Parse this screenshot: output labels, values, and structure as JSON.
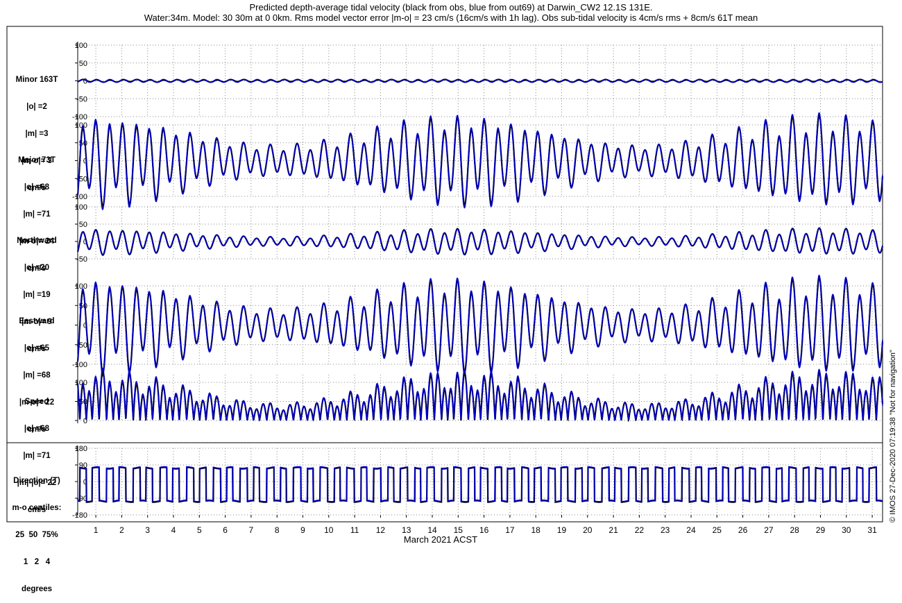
{
  "title_line1": "Predicted depth-average tidal velocity (black from obs, blue from out69) at Darwin_CW2 12.1S 131E.",
  "title_line2": "Water:34m. Model: 30 30m at 0 0km. Rms model vector error |m-o| = 23 cm/s (16cm/s with 1h lag). Obs sub-tidal velocity is 4cm/s rms + 8cm/s 61T mean",
  "side_note": "© IMOS 27-Dec-2020 07:19:38  \"Not for navigation\"",
  "colors": {
    "obs": "#000000",
    "model": "#0000cc",
    "grid": "#888888",
    "frame": "#000000"
  },
  "chart_data": {
    "type": "line",
    "xlabel": "March 2021 ACST",
    "x_ticks": [
      1,
      2,
      3,
      4,
      5,
      6,
      7,
      8,
      9,
      10,
      11,
      12,
      13,
      14,
      15,
      16,
      17,
      18,
      19,
      20,
      21,
      22,
      23,
      24,
      25,
      26,
      27,
      28,
      29,
      30,
      31
    ],
    "xlim": [
      0.3,
      31.4
    ],
    "series_names": [
      "obs (black)",
      "out69 model (blue)"
    ],
    "grid": true,
    "panels": [
      {
        "id": "minor",
        "label_lines": [
          "Minor 163T",
          "|o| =2",
          "|m| =3",
          "|m-o|= 3",
          "cm/s"
        ],
        "ylim": [
          -100,
          100
        ],
        "y_ticks": [
          100,
          50,
          0,
          -50,
          -100
        ],
        "y_tick_labels": [
          "100",
          "50",
          "0",
          "-50",
          "-100"
        ],
        "signal": {
          "kind": "oscillation",
          "amplitude_obs": 3,
          "amplitude_model": 4,
          "spring_neap": false
        }
      },
      {
        "id": "major",
        "label_lines": [
          "Major 73T",
          "|o| =68",
          "|m| =71",
          "|m-o|= 24",
          "cm/s"
        ],
        "ylim": [
          -100,
          100
        ],
        "y_ticks": [
          100,
          50,
          0,
          -50,
          -100
        ],
        "y_tick_labels": [
          "100",
          "50",
          "0",
          "-50",
          "-100"
        ],
        "signal": {
          "kind": "oscillation",
          "spring_max_obs": 112,
          "spring_max_model": 118,
          "neap_min": 40
        }
      },
      {
        "id": "north",
        "label_lines": [
          "Northward",
          "|o| =20",
          "|m| =19",
          "|m-o|= 9",
          "cm/s"
        ],
        "ylim": [
          -50,
          100
        ],
        "y_ticks": [
          100,
          50,
          0,
          -50
        ],
        "y_tick_labels": [
          "100",
          "50",
          "0",
          "-50"
        ],
        "signal": {
          "kind": "oscillation",
          "spring_max_obs": 34,
          "spring_max_model": 33,
          "neap_min": 12
        }
      },
      {
        "id": "east",
        "label_lines": [
          "Eastward",
          "|o| =65",
          "|m| =68",
          "|m-o|= 22",
          "cm/s"
        ],
        "ylim": [
          -100,
          100
        ],
        "y_ticks": [
          100,
          50,
          0,
          -50,
          -100
        ],
        "y_tick_labels": [
          "100",
          "50",
          "0",
          "-50",
          "-100"
        ],
        "signal": {
          "kind": "oscillation",
          "spring_max_obs": 107,
          "spring_max_model": 112,
          "neap_min": 38
        }
      },
      {
        "id": "speed",
        "label_lines": [
          "Speed",
          "|o| =68",
          "|m| =71",
          "|m|-|o|= 22",
          "cm/s"
        ],
        "ylim": [
          0,
          120
        ],
        "y_ticks": [
          100,
          50,
          0
        ],
        "y_tick_labels": [
          "100",
          "50",
          "0"
        ],
        "signal": {
          "kind": "speed",
          "spring_max_obs": 112,
          "spring_max_model": 118,
          "neap_min": 40
        }
      },
      {
        "id": "direction",
        "label_lines": [
          "Direction (T)",
          "m-o centiles:",
          "25  50  75%",
          "1   2   4",
          "degrees"
        ],
        "ylim": [
          -180,
          180
        ],
        "y_ticks": [
          180,
          90,
          0,
          -90,
          -180
        ],
        "y_tick_labels": [
          "180",
          "90",
          "0",
          "-90",
          "-180"
        ],
        "signal": {
          "kind": "direction",
          "flood_deg": 73,
          "ebb_deg": -107
        }
      }
    ]
  }
}
